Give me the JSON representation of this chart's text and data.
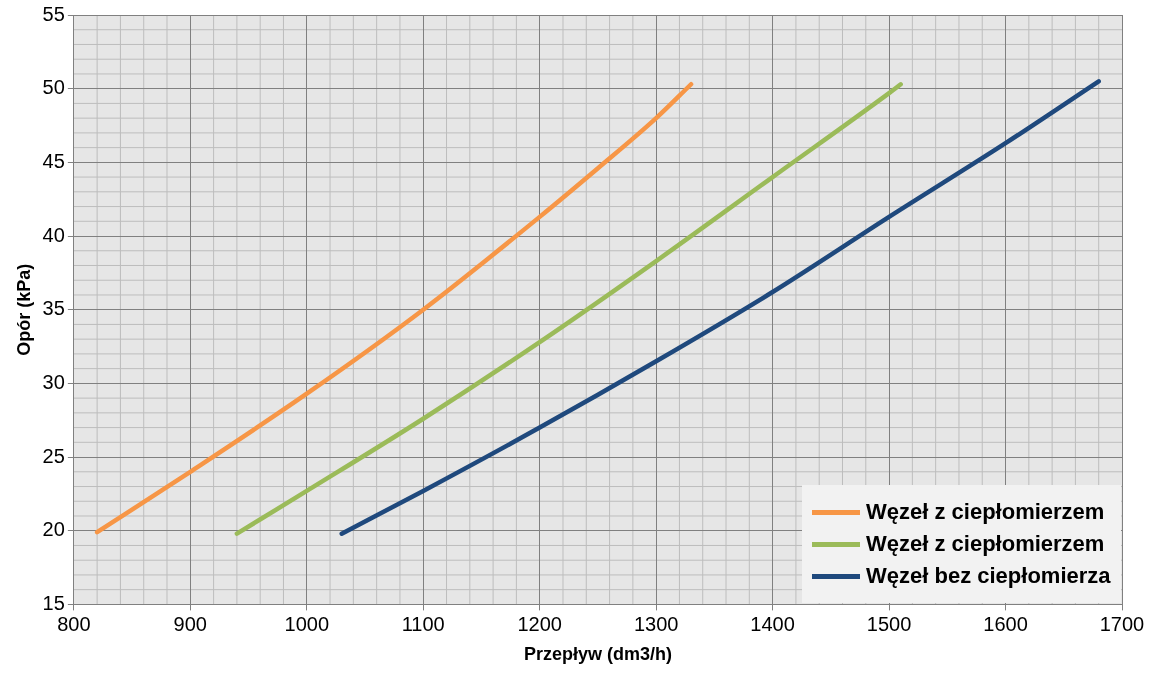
{
  "chart_data": {
    "type": "line",
    "xlabel": "Przepływ (dm3/h)",
    "ylabel": "Opór (kPa)",
    "xlim": [
      800,
      1700
    ],
    "xticks": [
      800,
      900,
      1000,
      1100,
      1200,
      1300,
      1400,
      1500,
      1600,
      1700
    ],
    "ylim": [
      15,
      55
    ],
    "yticks": [
      15,
      20,
      25,
      30,
      35,
      40,
      45,
      50,
      55
    ],
    "grid": true,
    "legend": "bottom right",
    "marker": "none",
    "line_style": "solid",
    "series": [
      {
        "name": "Węzeł z ciepłomierzem",
        "color": "#f79646",
        "x": [
          820,
          900,
          1000,
          1100,
          1200,
          1250,
          1300,
          1330
        ],
        "values": [
          19.9,
          24,
          29.3,
          35,
          41.3,
          44.6,
          48,
          50.3
        ]
      },
      {
        "name": "Węzeł z ciepłomierzem",
        "color": "#9bbb59",
        "x": [
          940,
          1000,
          1100,
          1200,
          1300,
          1400,
          1500,
          1510
        ],
        "values": [
          19.8,
          22.7,
          27.6,
          32.8,
          38.3,
          44,
          49.7,
          50.3
        ]
      },
      {
        "name": "Węzeł bez ciepłomierza",
        "color": "#1f497d",
        "x": [
          1030,
          1100,
          1200,
          1300,
          1400,
          1500,
          1600,
          1680
        ],
        "values": [
          19.8,
          22.7,
          27,
          31.5,
          36.2,
          41.3,
          46.3,
          50.5
        ]
      }
    ]
  }
}
